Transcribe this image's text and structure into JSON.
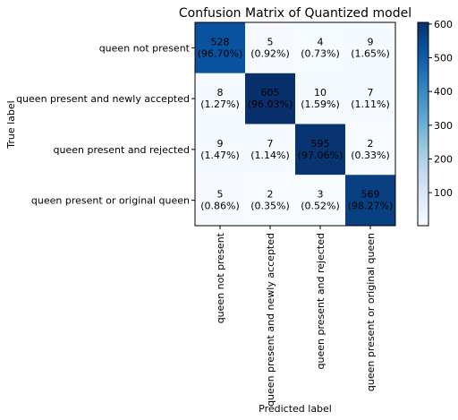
{
  "chart_data": {
    "type": "heatmap",
    "title": "Confusion Matrix of Quantized model",
    "xlabel": "Predicted label",
    "ylabel": "True label",
    "row_labels": [
      "queen not present",
      "queen present and newly accepted",
      "queen present and rejected",
      "queen present or original queen"
    ],
    "col_labels": [
      "queen not present",
      "queen present and newly accepted",
      "queen present and rejected",
      "queen present or original queen"
    ],
    "counts": [
      [
        528,
        5,
        4,
        9
      ],
      [
        8,
        605,
        10,
        7
      ],
      [
        9,
        7,
        595,
        2
      ],
      [
        5,
        2,
        3,
        569
      ]
    ],
    "percent_labels": [
      [
        "(96.70%)",
        "(0.92%)",
        "(0.73%)",
        "(1.65%)"
      ],
      [
        "(1.27%)",
        "(96.03%)",
        "(1.59%)",
        "(1.11%)"
      ],
      [
        "(1.47%)",
        "(1.14%)",
        "(97.06%)",
        "(0.33%)"
      ],
      [
        "(0.86%)",
        "(0.35%)",
        "(0.52%)",
        "(98.27%)"
      ]
    ],
    "colorbar": {
      "colormap": "Blues",
      "range": [
        2,
        605
      ],
      "ticks": [
        100,
        200,
        300,
        400,
        500,
        600
      ]
    },
    "colors": {
      "low": "#f7fbff",
      "high": "#08306b"
    }
  }
}
